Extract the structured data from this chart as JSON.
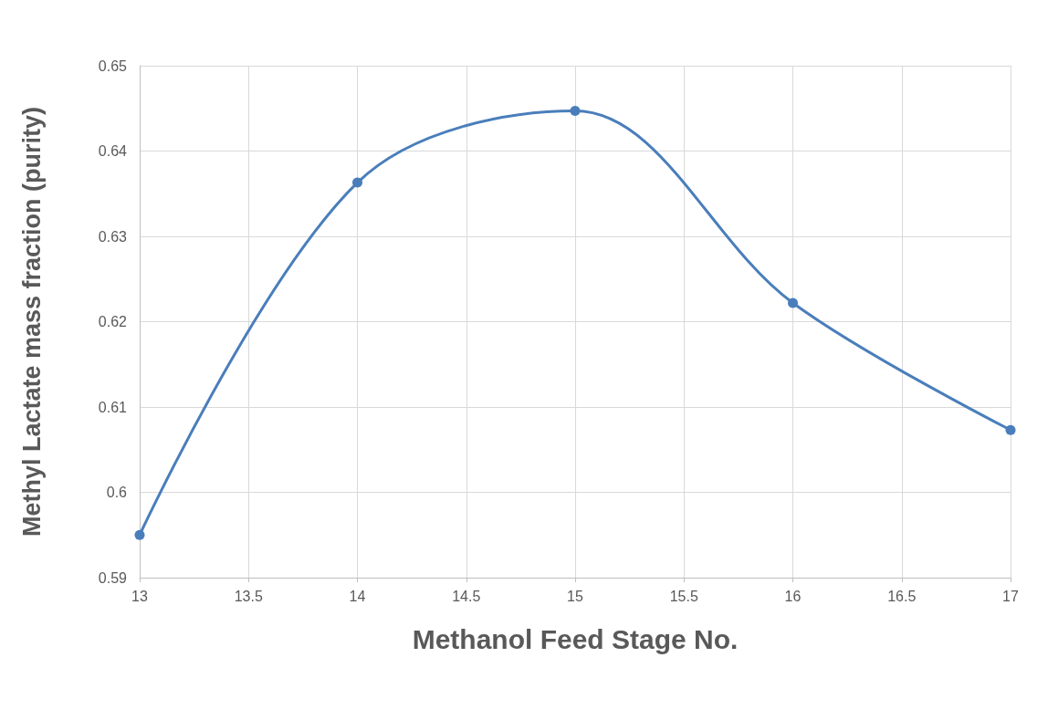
{
  "chart_data": {
    "type": "line",
    "xlabel": "Methanol Feed Stage No.",
    "ylabel": "Methyl Lactate mass fraction (purity)",
    "x": [
      13,
      14,
      15,
      16,
      17
    ],
    "series": [
      {
        "color": "#4a7ebb",
        "values": [
          0.595,
          0.6363,
          0.6447,
          0.6222,
          0.6073
        ]
      }
    ],
    "xlim": [
      13,
      17
    ],
    "xticks": [
      13,
      13.5,
      14,
      14.5,
      15,
      15.5,
      16,
      16.5,
      17
    ],
    "ylim": [
      0.59,
      0.65
    ],
    "yticks": [
      0.59,
      0.6,
      0.61,
      0.62,
      0.63,
      0.64,
      0.65
    ],
    "grid": true,
    "marker": "circle",
    "line_style": "solid"
  }
}
